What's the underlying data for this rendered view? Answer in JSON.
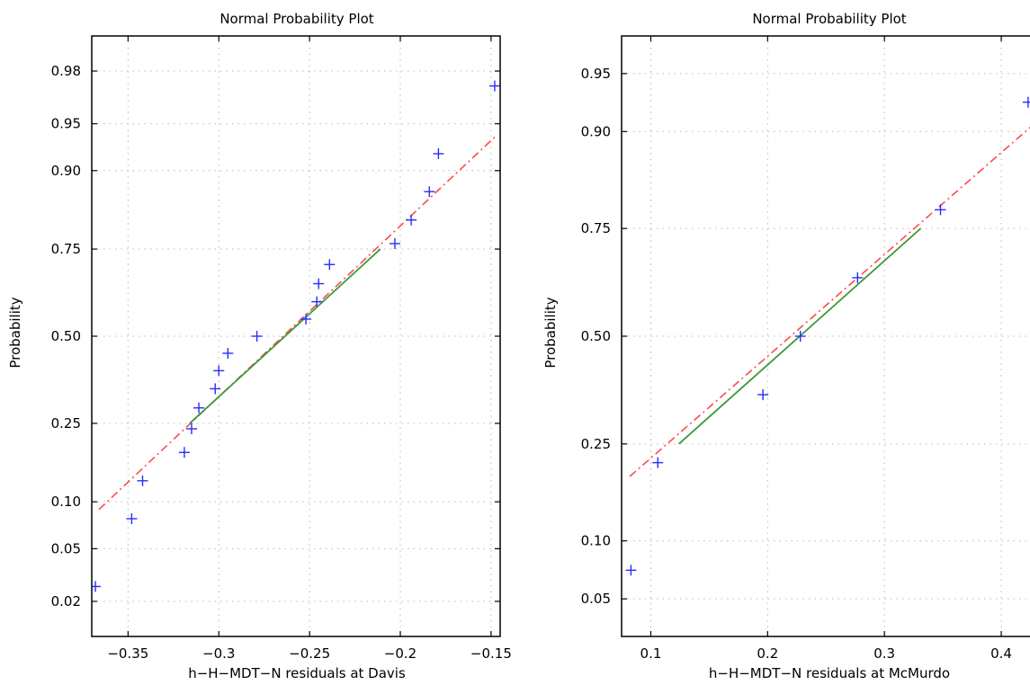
{
  "chart_data": [
    {
      "type": "scatter",
      "title": "Normal Probability Plot",
      "xlabel": "h−H−MDT−N residuals at Davis",
      "ylabel": "Probability",
      "xlim": [
        -0.37,
        -0.145
      ],
      "ylim_probability": [
        0.01,
        0.99
      ],
      "y_scale": "normal-probability",
      "grid": true,
      "x_ticks": [
        -0.35,
        -0.3,
        -0.25,
        -0.2,
        -0.15
      ],
      "x_tick_labels": [
        "−0.35",
        "−0.3",
        "−0.25",
        "−0.2",
        "−0.15"
      ],
      "y_ticks": [
        0.02,
        0.05,
        0.1,
        0.25,
        0.5,
        0.75,
        0.9,
        0.95,
        0.98
      ],
      "y_tick_labels": [
        "0.02",
        "0.05",
        "0.10",
        "0.25",
        "0.50",
        "0.75",
        "0.90",
        "0.95",
        "0.98"
      ],
      "points": [
        {
          "x": -0.368,
          "p": 0.0263
        },
        {
          "x": -0.348,
          "p": 0.0789
        },
        {
          "x": -0.342,
          "p": 0.1316
        },
        {
          "x": -0.319,
          "p": 0.1842
        },
        {
          "x": -0.315,
          "p": 0.2368
        },
        {
          "x": -0.311,
          "p": 0.2895
        },
        {
          "x": -0.302,
          "p": 0.3421
        },
        {
          "x": -0.3,
          "p": 0.3947
        },
        {
          "x": -0.295,
          "p": 0.4474
        },
        {
          "x": -0.279,
          "p": 0.5
        },
        {
          "x": -0.252,
          "p": 0.5526
        },
        {
          "x": -0.246,
          "p": 0.6053
        },
        {
          "x": -0.245,
          "p": 0.6579
        },
        {
          "x": -0.239,
          "p": 0.7105
        },
        {
          "x": -0.203,
          "p": 0.7632
        },
        {
          "x": -0.194,
          "p": 0.8158
        },
        {
          "x": -0.184,
          "p": 0.8684
        },
        {
          "x": -0.179,
          "p": 0.9211
        },
        {
          "x": -0.148,
          "p": 0.9737
        }
      ],
      "reference_line": {
        "x": [
          -0.366,
          -0.147
        ],
        "p": [
          0.09,
          0.94
        ]
      },
      "fit_line": {
        "x": [
          -0.316,
          -0.211
        ],
        "p": [
          0.25,
          0.75
        ]
      },
      "colors": {
        "points": "#2b2bff",
        "reference_line": "#ff4a4a",
        "fit_line": "#3a9a3a"
      }
    },
    {
      "type": "scatter",
      "title": "Normal Probability Plot",
      "xlabel": "h−H−MDT−N residuals at McMurdo",
      "ylabel": "Probability",
      "xlim": [
        0.075,
        0.43
      ],
      "ylim_probability": [
        0.03,
        0.97
      ],
      "y_scale": "normal-probability",
      "grid": true,
      "x_ticks": [
        0.1,
        0.2,
        0.3,
        0.4
      ],
      "x_tick_labels": [
        "0.1",
        "0.2",
        "0.3",
        "0.4"
      ],
      "y_ticks": [
        0.05,
        0.1,
        0.25,
        0.5,
        0.75,
        0.9,
        0.95
      ],
      "y_tick_labels": [
        "0.05",
        "0.10",
        "0.25",
        "0.50",
        "0.75",
        "0.90",
        "0.95"
      ],
      "points": [
        {
          "x": 0.083,
          "p": 0.0714
        },
        {
          "x": 0.106,
          "p": 0.2143
        },
        {
          "x": 0.196,
          "p": 0.3571
        },
        {
          "x": 0.228,
          "p": 0.5
        },
        {
          "x": 0.277,
          "p": 0.6429
        },
        {
          "x": 0.348,
          "p": 0.7857
        },
        {
          "x": 0.423,
          "p": 0.9286
        }
      ],
      "reference_line": {
        "x": [
          0.082,
          0.43
        ],
        "p": [
          0.19,
          0.91
        ]
      },
      "fit_line": {
        "x": [
          0.124,
          0.331
        ],
        "p": [
          0.25,
          0.75
        ]
      },
      "colors": {
        "points": "#2b2bff",
        "reference_line": "#ff4a4a",
        "fit_line": "#3a9a3a"
      }
    }
  ]
}
